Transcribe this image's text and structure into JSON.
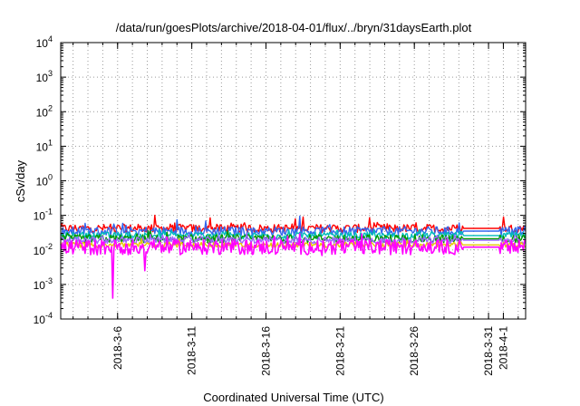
{
  "chart_data": {
    "type": "line",
    "title": "/data/run/goesPlots/archive/2018-04-01/flux/../bryn/31daysEarth.plot",
    "xlabel": "Coordinated Universal Time (UTC)",
    "ylabel": "cSv/day",
    "yscale": "log",
    "ylim": [
      0.0001,
      10000
    ],
    "xlim": [
      "2018-03-02T04:00",
      "2018-04-02T12:00"
    ],
    "grid": true,
    "x_ticks": [
      "2018-3-6",
      "2018-3-11",
      "2018-3-16",
      "2018-3-21",
      "2018-3-26",
      "2018-3-31",
      "2018-4-1"
    ],
    "x_tick_dates": [
      "2018-03-06",
      "2018-03-11",
      "2018-03-16",
      "2018-03-21",
      "2018-03-26",
      "2018-03-31",
      "2018-04-01"
    ],
    "y_ticks": [
      {
        "base": "10",
        "exp": "-4",
        "value": 0.0001
      },
      {
        "base": "10",
        "exp": "-3",
        "value": 0.001
      },
      {
        "base": "10",
        "exp": "-2",
        "value": 0.01
      },
      {
        "base": "10",
        "exp": "-1",
        "value": 0.1
      },
      {
        "base": "10",
        "exp": "0",
        "value": 1
      },
      {
        "base": "10",
        "exp": "1",
        "value": 10
      },
      {
        "base": "10",
        "exp": "2",
        "value": 100
      },
      {
        "base": "10",
        "exp": "3",
        "value": 1000
      },
      {
        "base": "10",
        "exp": "4",
        "value": 10000
      }
    ],
    "series": [
      {
        "color": "#ff0000",
        "baseline": 0.042,
        "spread": 0.12,
        "spikes": [
          {
            "x": "2018-03-08T12:00",
            "y": 0.1
          },
          {
            "x": "2018-03-12T06:00",
            "y": 0.085
          },
          {
            "x": "2018-03-18T12:00",
            "y": 0.09
          },
          {
            "x": "2018-03-23T00:00",
            "y": 0.085
          },
          {
            "x": "2018-04-01T00:00",
            "y": 0.09
          }
        ]
      },
      {
        "color": "#3366ee",
        "baseline": 0.035,
        "spread": 0.13,
        "spikes": [
          {
            "x": "2018-03-18T06:00",
            "y": 0.095
          },
          {
            "x": "2018-03-10T00:00",
            "y": 0.075
          },
          {
            "x": "2018-03-29T00:00",
            "y": 0.06
          }
        ]
      },
      {
        "color": "#00bbbb",
        "baseline": 0.026,
        "spread": 0.1,
        "spikes": []
      },
      {
        "color": "#009900",
        "baseline": 0.021,
        "spread": 0.12,
        "spikes": []
      },
      {
        "color": "#9966ff",
        "baseline": 0.019,
        "spread": 0.1,
        "spikes": []
      },
      {
        "color": "#e6c800",
        "baseline": 0.014,
        "spread": 0.08,
        "spikes": []
      },
      {
        "color": "#ff00ff",
        "baseline": 0.012,
        "spread": 0.22,
        "spikes": [
          {
            "x": "2018-03-05T16:00",
            "y": 0.0004
          },
          {
            "x": "2018-03-07T20:00",
            "y": 0.0025
          }
        ]
      }
    ]
  }
}
